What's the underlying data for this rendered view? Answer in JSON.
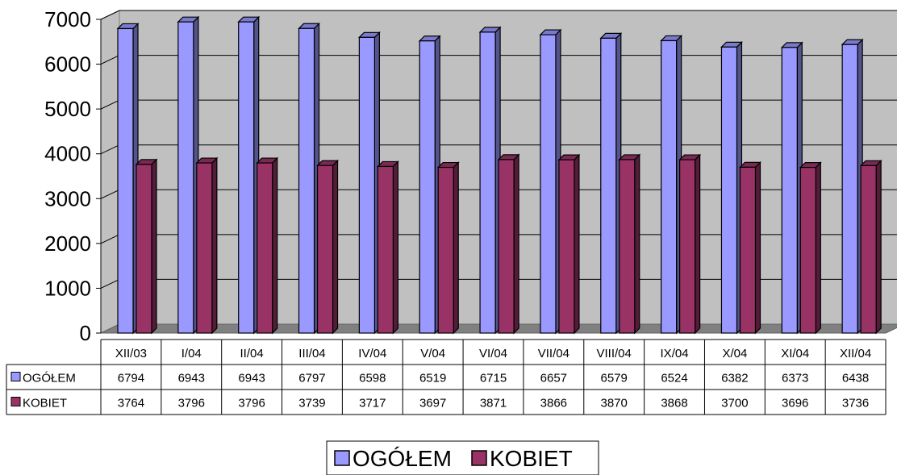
{
  "chart_data": {
    "type": "bar",
    "title": "",
    "xlabel": "",
    "ylabel": "",
    "ylim": [
      0,
      7000
    ],
    "yticks": [
      0,
      1000,
      2000,
      3000,
      4000,
      5000,
      6000,
      7000
    ],
    "grid": true,
    "legend": "bottom-center",
    "data_table": true,
    "categories": [
      "XII/03",
      "I/04",
      "II/04",
      "III/04",
      "IV/04",
      "V/04",
      "VI/04",
      "VII/04",
      "VIII/04",
      "IX/04",
      "X/04",
      "XI/04",
      "XII/04"
    ],
    "series": [
      {
        "name": "OGÓŁEM",
        "color": "#9999ff",
        "values": [
          6794,
          6943,
          6943,
          6797,
          6598,
          6519,
          6715,
          6657,
          6579,
          6524,
          6382,
          6373,
          6438
        ]
      },
      {
        "name": "KOBIET",
        "color": "#993366",
        "values": [
          3764,
          3796,
          3796,
          3739,
          3717,
          3697,
          3871,
          3866,
          3870,
          3868,
          3700,
          3696,
          3736
        ]
      }
    ]
  }
}
